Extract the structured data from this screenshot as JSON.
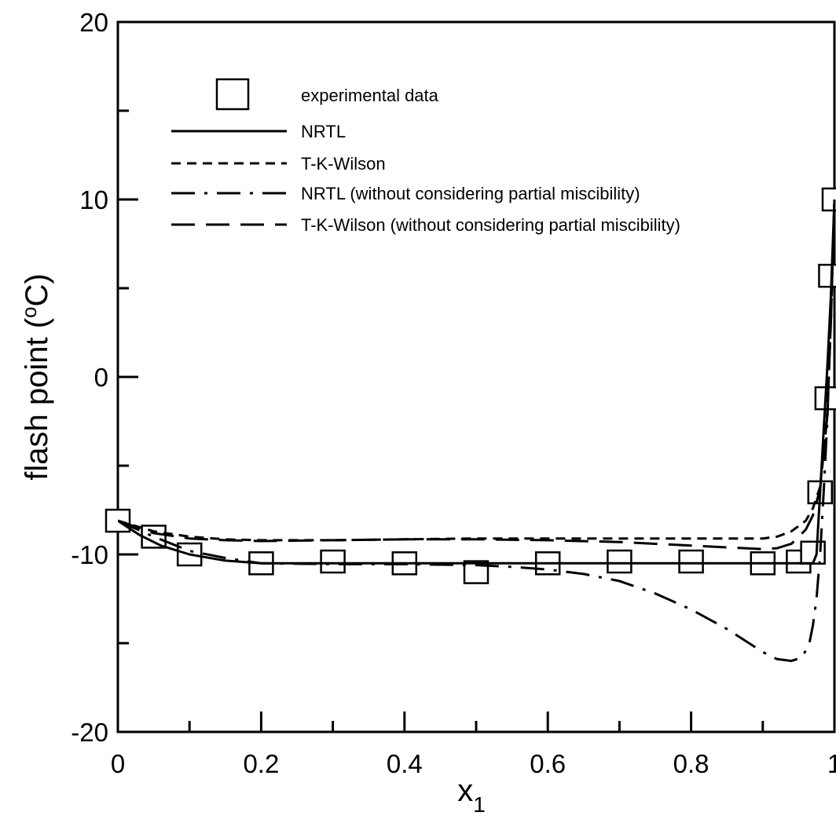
{
  "chart_data": {
    "type": "line",
    "xlabel": "x",
    "xlabel_sub": "1",
    "ylabel": "flash point (",
    "ylabel_sup": "o",
    "ylabel_end": "C)",
    "xlim": [
      0,
      1
    ],
    "ylim": [
      -20,
      20
    ],
    "xticks": [
      0,
      0.2,
      0.4,
      0.6,
      0.8,
      1
    ],
    "xtick_labels": [
      "0",
      "0.2",
      "0.4",
      "0.6",
      "0.8",
      "1"
    ],
    "yticks": [
      -20,
      -10,
      0,
      10,
      20
    ],
    "ytick_labels": [
      "-20",
      "-10",
      "0",
      "10",
      "20"
    ],
    "grid": false,
    "legend_position": "top-left",
    "series": [
      {
        "name": "experimental data",
        "style": "square-marker",
        "x": [
          0.0,
          0.05,
          0.1,
          0.2,
          0.3,
          0.4,
          0.5,
          0.6,
          0.7,
          0.8,
          0.9,
          0.95,
          0.97,
          0.98,
          0.99,
          0.995,
          1.0
        ],
        "y": [
          -8.1,
          -9.0,
          -10.0,
          -10.5,
          -10.4,
          -10.5,
          -11.0,
          -10.5,
          -10.4,
          -10.4,
          -10.5,
          -10.4,
          -9.9,
          -6.5,
          -1.2,
          5.7,
          10.0
        ]
      },
      {
        "name": "NRTL",
        "style": "solid",
        "x": [
          0.0,
          0.03,
          0.06,
          0.1,
          0.15,
          0.2,
          0.3,
          0.4,
          0.5,
          0.6,
          0.7,
          0.8,
          0.9,
          0.95,
          0.97,
          0.975,
          0.98,
          0.985,
          0.99,
          0.995,
          1.0
        ],
        "y": [
          -8.1,
          -8.9,
          -9.5,
          -10.0,
          -10.35,
          -10.5,
          -10.5,
          -10.5,
          -10.5,
          -10.5,
          -10.5,
          -10.5,
          -10.5,
          -10.5,
          -10.5,
          -10.0,
          -6.5,
          -3.0,
          0.5,
          4.5,
          10.0
        ]
      },
      {
        "name": "T-K-Wilson",
        "style": "dashed",
        "x": [
          0.0,
          0.05,
          0.1,
          0.15,
          0.2,
          0.3,
          0.4,
          0.5,
          0.6,
          0.7,
          0.8,
          0.85,
          0.9,
          0.92,
          0.94,
          0.96,
          0.97,
          0.98,
          0.99,
          0.995,
          1.0
        ],
        "y": [
          -8.1,
          -8.7,
          -9.0,
          -9.15,
          -9.2,
          -9.2,
          -9.15,
          -9.1,
          -9.1,
          -9.1,
          -9.1,
          -9.1,
          -9.1,
          -9.0,
          -8.7,
          -8.1,
          -7.4,
          -6.2,
          -2.0,
          3.0,
          10.0
        ]
      },
      {
        "name": "NRTL (without considering partial miscibility)",
        "style": "dash-dot",
        "x": [
          0.0,
          0.05,
          0.1,
          0.15,
          0.2,
          0.3,
          0.4,
          0.5,
          0.55,
          0.6,
          0.65,
          0.7,
          0.75,
          0.8,
          0.85,
          0.9,
          0.92,
          0.94,
          0.955,
          0.965,
          0.97,
          0.975,
          0.98,
          0.985,
          0.99,
          0.995,
          1.0
        ],
        "y": [
          -8.1,
          -9.0,
          -9.8,
          -10.2,
          -10.5,
          -10.55,
          -10.55,
          -10.6,
          -10.7,
          -10.85,
          -11.1,
          -11.5,
          -12.2,
          -13.1,
          -14.2,
          -15.5,
          -15.9,
          -16.0,
          -15.8,
          -15.0,
          -14.0,
          -12.5,
          -10.0,
          -6.5,
          -2.5,
          3.5,
          10.0
        ]
      },
      {
        "name": "T-K-Wilson (without considering partial miscibility)",
        "style": "long-dash",
        "x": [
          0.0,
          0.05,
          0.1,
          0.15,
          0.2,
          0.3,
          0.4,
          0.5,
          0.6,
          0.7,
          0.8,
          0.85,
          0.9,
          0.92,
          0.94,
          0.96,
          0.97,
          0.98,
          0.99,
          0.995,
          1.0
        ],
        "y": [
          -8.1,
          -8.8,
          -9.1,
          -9.2,
          -9.25,
          -9.2,
          -9.15,
          -9.15,
          -9.2,
          -9.3,
          -9.5,
          -9.6,
          -9.7,
          -9.65,
          -9.4,
          -8.6,
          -7.8,
          -6.3,
          -2.2,
          3.0,
          10.0
        ]
      }
    ]
  }
}
